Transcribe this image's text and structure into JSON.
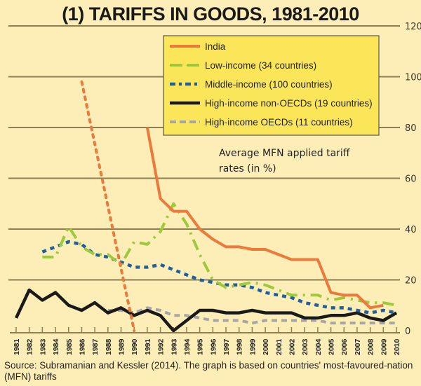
{
  "chart_data": {
    "type": "line",
    "title": "(1) TARIFFS IN GOODS, 1981-2010",
    "ylabel": "Average MFN applied tariff rates (in %)",
    "ylabel_lines": [
      "Average MFN applied tariff",
      "rates (in %)"
    ],
    "xlabel": "",
    "ylim": [
      0,
      120
    ],
    "yticks": [
      0,
      20,
      40,
      60,
      80,
      100,
      120
    ],
    "ytick_labels": [
      "0",
      "20",
      "40",
      "60",
      "80",
      "100",
      "120"
    ],
    "grid": true,
    "legend_position": "top-center",
    "x": [
      1981,
      1982,
      1983,
      1984,
      1985,
      1986,
      1987,
      1988,
      1989,
      1990,
      1991,
      1992,
      1993,
      1994,
      1995,
      1996,
      1997,
      1998,
      1999,
      2000,
      2001,
      2002,
      2003,
      2004,
      2005,
      2006,
      2007,
      2008,
      2009,
      2010
    ],
    "xtick_labels": [
      "1981",
      "1982",
      "1983",
      "1984",
      "1985",
      "1986",
      "1987",
      "1988",
      "1989",
      "1990",
      "1991",
      "1992",
      "1993",
      "1994",
      "1995",
      "1996",
      "1997",
      "1998",
      "1999",
      "2000",
      "2001",
      "2002",
      "2003",
      "2004",
      "2005",
      "2006",
      "2007",
      "2008",
      "2009",
      "2010"
    ],
    "series": [
      {
        "name": "India",
        "color": "#ec7a3c",
        "style": "solid",
        "note": "dotted segment 1986-1990 (interpolated)",
        "dotted_range": [
          1986,
          1990
        ],
        "values": [
          null,
          null,
          null,
          null,
          null,
          98,
          null,
          null,
          null,
          null,
          80,
          52,
          47,
          47,
          40,
          36,
          33,
          33,
          32,
          32,
          30,
          28,
          28,
          28,
          15,
          14,
          14,
          9,
          10,
          null
        ]
      },
      {
        "name": "Low-income (34 countries)",
        "color": "#9dc93b",
        "style": "dashdot",
        "values": [
          null,
          null,
          29,
          29,
          41,
          33,
          30,
          30,
          26,
          35,
          34,
          39,
          50,
          42,
          30,
          20,
          17,
          18,
          19,
          18,
          16,
          14,
          14,
          14,
          12,
          13,
          12,
          11,
          11,
          10
        ]
      },
      {
        "name": "Middle-income (100 countries)",
        "color": "#1e5fa0",
        "style": "dotted",
        "values": [
          null,
          null,
          31,
          33,
          35,
          34,
          30,
          29,
          27,
          25,
          25,
          26,
          24,
          22,
          20,
          19,
          18,
          18,
          17,
          15,
          14,
          13,
          11,
          10,
          9,
          9,
          8,
          7,
          8,
          7
        ]
      },
      {
        "name": "High-income non-OECDs (19 countries)",
        "color": "#1a1a1a",
        "style": "solid-thick",
        "values": [
          5,
          16,
          12,
          15,
          10,
          8,
          11,
          7,
          9,
          6,
          8,
          6,
          0,
          4,
          8,
          8,
          7,
          7,
          8,
          7,
          7,
          7,
          5,
          5,
          6,
          6,
          7,
          5,
          4,
          7
        ]
      },
      {
        "name": "High-income OECDs (11 countries)",
        "color": "#a6a6a6",
        "style": "dashed",
        "values": [
          null,
          null,
          null,
          null,
          null,
          null,
          null,
          8,
          8,
          7,
          9,
          8,
          6,
          6,
          5,
          4,
          4,
          4,
          3,
          4,
          4,
          4,
          4,
          4,
          3,
          3,
          3,
          3,
          3,
          3
        ]
      }
    ]
  },
  "legend": {
    "items": [
      {
        "label": "India",
        "color": "#ec7a3c"
      },
      {
        "label": "Low-income (34 countries)",
        "color": "#9dc93b"
      },
      {
        "label": "Middle-income (100 countries)",
        "color": "#1e5fa0"
      },
      {
        "label": "High-income non-OECDs (19 countries)",
        "color": "#1a1a1a"
      },
      {
        "label": "High-income OECDs (11 countries)",
        "color": "#a6a6a6"
      }
    ]
  },
  "source": "Source: Subramanian and Kessler (2014). The graph is based on countries' most-favoured-nation (MFN) tariffs",
  "colors": {
    "background": "#fdeeb8",
    "legend_background": "#fbe65a",
    "gridline": "#8c7f52"
  }
}
